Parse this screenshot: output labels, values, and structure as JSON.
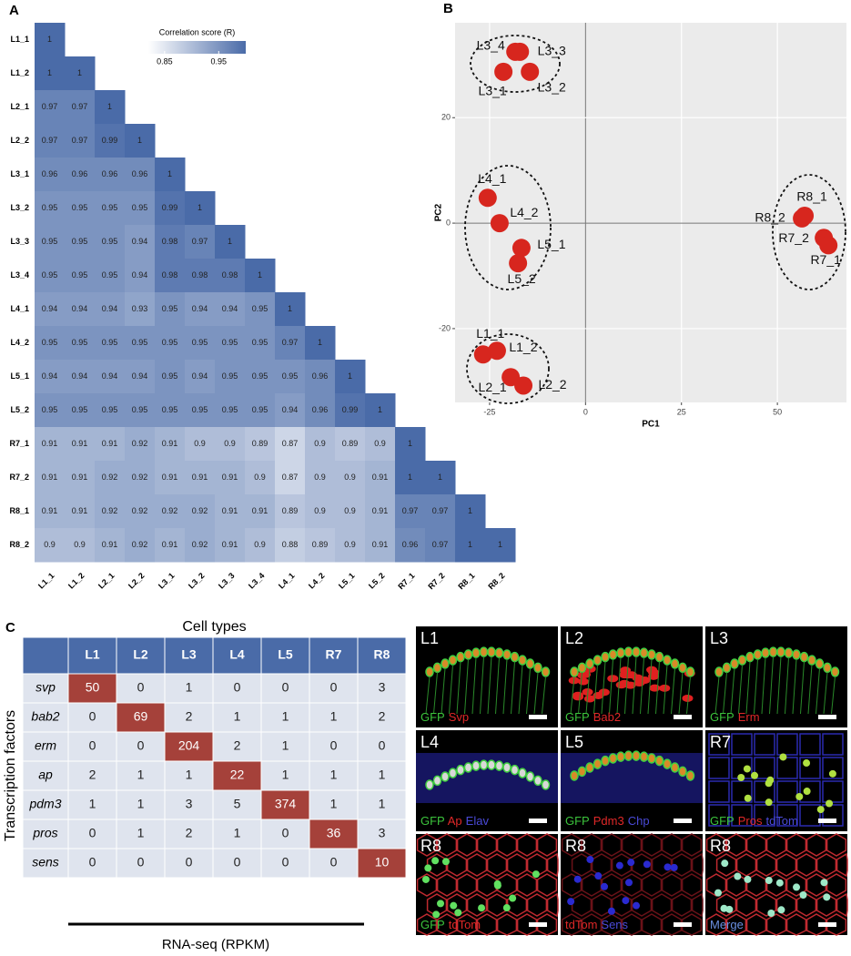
{
  "panels": [
    "A",
    "B",
    "C"
  ],
  "chart_data": [
    {
      "type": "heatmap",
      "rows": [
        "L1_1",
        "L1_2",
        "L2_1",
        "L2_2",
        "L3_1",
        "L3_2",
        "L3_3",
        "L3_4",
        "L4_1",
        "L4_2",
        "L5_1",
        "L5_2",
        "R7_1",
        "R7_2",
        "R8_1",
        "R8_2"
      ],
      "columns": [
        "L1_1",
        "L1_2",
        "L2_1",
        "L2_2",
        "L3_1",
        "L3_2",
        "L3_3",
        "L3_4",
        "L4_1",
        "L4_2",
        "L5_1",
        "L5_2",
        "R7_1",
        "R7_2",
        "R8_1",
        "R8_2"
      ],
      "values": [
        [
          1
        ],
        [
          1,
          1
        ],
        [
          0.97,
          0.97,
          1
        ],
        [
          0.97,
          0.97,
          0.99,
          1
        ],
        [
          0.96,
          0.96,
          0.96,
          0.96,
          1
        ],
        [
          0.95,
          0.95,
          0.95,
          0.95,
          0.99,
          1
        ],
        [
          0.95,
          0.95,
          0.95,
          0.94,
          0.98,
          0.97,
          1
        ],
        [
          0.95,
          0.95,
          0.95,
          0.94,
          0.98,
          0.98,
          0.98,
          1
        ],
        [
          0.94,
          0.94,
          0.94,
          0.93,
          0.95,
          0.94,
          0.94,
          0.95,
          1
        ],
        [
          0.95,
          0.95,
          0.95,
          0.95,
          0.95,
          0.95,
          0.95,
          0.95,
          0.97,
          1
        ],
        [
          0.94,
          0.94,
          0.94,
          0.94,
          0.95,
          0.94,
          0.95,
          0.95,
          0.95,
          0.96,
          1
        ],
        [
          0.95,
          0.95,
          0.95,
          0.95,
          0.95,
          0.95,
          0.95,
          0.95,
          0.94,
          0.96,
          0.99,
          1
        ],
        [
          0.91,
          0.91,
          0.91,
          0.92,
          0.91,
          0.9,
          0.9,
          0.89,
          0.87,
          0.9,
          0.89,
          0.9,
          1
        ],
        [
          0.91,
          0.91,
          0.92,
          0.92,
          0.91,
          0.91,
          0.91,
          0.9,
          0.87,
          0.9,
          0.9,
          0.91,
          1,
          1
        ],
        [
          0.91,
          0.91,
          0.92,
          0.92,
          0.92,
          0.92,
          0.91,
          0.91,
          0.89,
          0.9,
          0.9,
          0.91,
          0.97,
          0.97,
          1
        ],
        [
          0.9,
          0.9,
          0.91,
          0.92,
          0.91,
          0.92,
          0.91,
          0.9,
          0.88,
          0.89,
          0.9,
          0.91,
          0.96,
          0.97,
          1,
          1
        ]
      ],
      "colorbar": {
        "title": "Correlation score (R)",
        "lim": [
          0.82,
          1.0
        ],
        "ticks": [
          0.85,
          0.95
        ],
        "colors": [
          "#ffffff",
          "#4a6ba8"
        ]
      }
    },
    {
      "type": "scatter",
      "xlabel": "PC1",
      "ylabel": "PC2",
      "xlim": [
        -34,
        68
      ],
      "ylim": [
        -34,
        38
      ],
      "xticks": [
        -25,
        0,
        25,
        50
      ],
      "yticks": [
        -20,
        0,
        20
      ],
      "grid": true,
      "series": [
        {
          "color": "#d7261e",
          "x": [
            -21.4,
            -14.5,
            -17.1,
            -18.3,
            -25.5,
            -22.4,
            -16.7,
            -17.6,
            57.1,
            56.4,
            62.1,
            63.3,
            -26.7,
            -23.1,
            -19.5,
            -16.2
          ],
          "values": [
            28.7,
            28.7,
            32.5,
            32.5,
            4.8,
            0,
            -4.7,
            -7.6,
            1.4,
            0.9,
            -2.8,
            -4.2,
            -24.9,
            -24.2,
            -29.2,
            -30.8
          ],
          "point_labels": [
            "L3_1",
            "L3_2",
            "L3_3",
            "L3_4",
            "L4_1",
            "L4_2",
            "L5_1",
            "L5_2",
            "R8_1",
            "R8_2",
            "R7_2",
            "R7_1",
            "L1_1",
            "L1_2",
            "L2_1",
            "L2_2"
          ]
        }
      ]
    }
  ],
  "table": {
    "title": "Cell types",
    "row_header": "Transcription factors",
    "footer": "RNA-seq (RPKM)",
    "columns": [
      "L1",
      "L2",
      "L3",
      "L4",
      "L5",
      "R7",
      "R8"
    ],
    "rows": [
      {
        "name": "svp",
        "values": [
          50,
          0,
          1,
          0,
          0,
          0,
          3
        ]
      },
      {
        "name": "bab2",
        "values": [
          0,
          69,
          2,
          1,
          1,
          1,
          2
        ]
      },
      {
        "name": "erm",
        "values": [
          0,
          0,
          204,
          2,
          1,
          0,
          0
        ]
      },
      {
        "name": "ap",
        "values": [
          2,
          1,
          1,
          22,
          1,
          1,
          1
        ]
      },
      {
        "name": "pdm3",
        "values": [
          1,
          1,
          3,
          5,
          374,
          1,
          1
        ]
      },
      {
        "name": "pros",
        "values": [
          0,
          1,
          2,
          1,
          0,
          36,
          3
        ]
      },
      {
        "name": "sens",
        "values": [
          0,
          0,
          0,
          0,
          0,
          0,
          10
        ]
      }
    ],
    "highlight": "diagonal",
    "highlight_color": "#a5413a",
    "header_color": "#4a6ba8",
    "cell_color": "#dfe4ee"
  },
  "images": {
    "tiles": [
      {
        "label": "L1",
        "stains": [
          {
            "text": "GFP",
            "color": "#3cc43c"
          },
          {
            "text": "Svp",
            "color": "#e02828"
          }
        ]
      },
      {
        "label": "L2",
        "stains": [
          {
            "text": "GFP",
            "color": "#3cc43c"
          },
          {
            "text": "Bab2",
            "color": "#e02828"
          }
        ]
      },
      {
        "label": "L3",
        "stains": [
          {
            "text": "GFP",
            "color": "#3cc43c"
          },
          {
            "text": "Erm",
            "color": "#e02828"
          }
        ]
      },
      {
        "label": "L4",
        "stains": [
          {
            "text": "GFP",
            "color": "#3cc43c"
          },
          {
            "text": "Ap",
            "color": "#e02828"
          },
          {
            "text": "Elav",
            "color": "#4a4ad8"
          }
        ]
      },
      {
        "label": "L5",
        "stains": [
          {
            "text": "GFP",
            "color": "#3cc43c"
          },
          {
            "text": "Pdm3",
            "color": "#e02828"
          },
          {
            "text": "Chp",
            "color": "#4a4ad8"
          }
        ]
      },
      {
        "label": "R7",
        "stains": [
          {
            "text": "GFP",
            "color": "#3cc43c"
          },
          {
            "text": "Pros",
            "color": "#e02828"
          },
          {
            "text": "tdTom",
            "color": "#4a4ad8"
          }
        ]
      },
      {
        "label": "R8",
        "stains": [
          {
            "text": "GFP",
            "color": "#3cc43c"
          },
          {
            "text": "tdTom",
            "color": "#e02828"
          }
        ]
      },
      {
        "label": "R8",
        "stains": [
          {
            "text": "tdTom",
            "color": "#e02828"
          },
          {
            "text": "Sens",
            "color": "#4a4ad8"
          }
        ]
      },
      {
        "label": "R8",
        "stains": [
          {
            "text": "Merge",
            "color": "#6a8fe0"
          }
        ]
      }
    ]
  }
}
